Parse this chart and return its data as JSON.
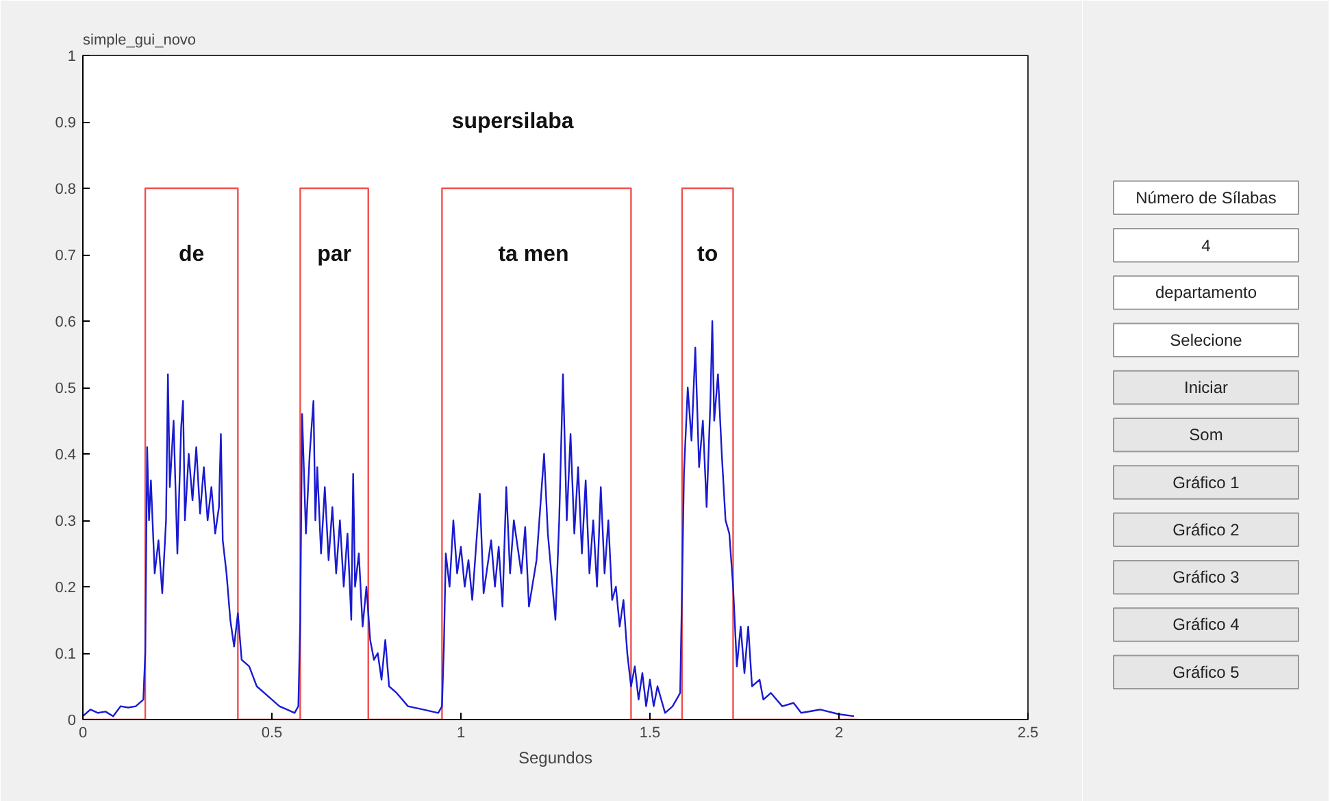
{
  "chart_data": [
    {
      "type": "line",
      "title": "simple_gui_novo",
      "xlabel": "Segundos",
      "xlim": [
        0,
        2.5
      ],
      "ylim": [
        0,
        1
      ],
      "xticks": [
        0,
        0.5,
        1,
        1.5,
        2,
        2.5
      ],
      "yticks": [
        0,
        0.1,
        0.2,
        0.3,
        0.4,
        0.5,
        0.6,
        0.7,
        0.8,
        0.9,
        1
      ],
      "grid": false,
      "series": [
        {
          "color": "#f05050",
          "x": [
            0,
            0.165,
            0.165,
            0.41,
            0.41,
            0.575,
            0.575,
            0.755,
            0.755,
            0.95,
            0.95,
            1.45,
            1.45,
            1.585,
            1.585,
            1.72,
            1.72,
            2.05
          ],
          "values": [
            0,
            0,
            0.8,
            0.8,
            0,
            0,
            0.8,
            0.8,
            0,
            0,
            0.8,
            0.8,
            0,
            0,
            0.8,
            0.8,
            0,
            0
          ]
        },
        {
          "color": "#1a1ad0",
          "x": [
            0,
            0.02,
            0.04,
            0.06,
            0.08,
            0.1,
            0.12,
            0.14,
            0.16,
            0.165,
            0.17,
            0.175,
            0.18,
            0.19,
            0.2,
            0.21,
            0.22,
            0.225,
            0.23,
            0.24,
            0.25,
            0.26,
            0.265,
            0.27,
            0.28,
            0.29,
            0.3,
            0.31,
            0.32,
            0.33,
            0.34,
            0.35,
            0.36,
            0.365,
            0.37,
            0.38,
            0.39,
            0.4,
            0.41,
            0.42,
            0.44,
            0.46,
            0.48,
            0.5,
            0.52,
            0.54,
            0.56,
            0.57,
            0.575,
            0.58,
            0.59,
            0.6,
            0.61,
            0.615,
            0.62,
            0.63,
            0.64,
            0.65,
            0.66,
            0.67,
            0.68,
            0.69,
            0.7,
            0.71,
            0.715,
            0.72,
            0.73,
            0.74,
            0.75,
            0.76,
            0.77,
            0.78,
            0.79,
            0.8,
            0.81,
            0.83,
            0.86,
            0.9,
            0.94,
            0.95,
            0.955,
            0.96,
            0.97,
            0.98,
            0.99,
            1.0,
            1.01,
            1.02,
            1.03,
            1.05,
            1.06,
            1.08,
            1.09,
            1.1,
            1.11,
            1.12,
            1.13,
            1.14,
            1.16,
            1.17,
            1.18,
            1.2,
            1.22,
            1.23,
            1.25,
            1.26,
            1.27,
            1.28,
            1.29,
            1.3,
            1.31,
            1.32,
            1.33,
            1.34,
            1.35,
            1.36,
            1.37,
            1.38,
            1.39,
            1.4,
            1.41,
            1.42,
            1.43,
            1.44,
            1.45,
            1.46,
            1.47,
            1.48,
            1.49,
            1.5,
            1.51,
            1.52,
            1.54,
            1.56,
            1.58,
            1.585,
            1.59,
            1.6,
            1.61,
            1.62,
            1.63,
            1.64,
            1.65,
            1.66,
            1.665,
            1.67,
            1.68,
            1.69,
            1.7,
            1.71,
            1.72,
            1.73,
            1.74,
            1.75,
            1.76,
            1.77,
            1.79,
            1.8,
            1.82,
            1.85,
            1.88,
            1.9,
            1.95,
            2.0,
            2.04
          ],
          "values": [
            0.005,
            0.015,
            0.01,
            0.012,
            0.005,
            0.02,
            0.018,
            0.02,
            0.03,
            0.1,
            0.41,
            0.3,
            0.36,
            0.22,
            0.27,
            0.19,
            0.3,
            0.52,
            0.35,
            0.45,
            0.25,
            0.44,
            0.48,
            0.3,
            0.4,
            0.33,
            0.41,
            0.31,
            0.38,
            0.3,
            0.35,
            0.28,
            0.32,
            0.43,
            0.27,
            0.22,
            0.15,
            0.11,
            0.16,
            0.09,
            0.08,
            0.05,
            0.04,
            0.03,
            0.02,
            0.015,
            0.01,
            0.02,
            0.15,
            0.46,
            0.28,
            0.4,
            0.48,
            0.3,
            0.38,
            0.25,
            0.35,
            0.24,
            0.32,
            0.22,
            0.3,
            0.2,
            0.28,
            0.15,
            0.37,
            0.2,
            0.25,
            0.14,
            0.2,
            0.12,
            0.09,
            0.1,
            0.06,
            0.12,
            0.05,
            0.04,
            0.02,
            0.015,
            0.01,
            0.02,
            0.11,
            0.25,
            0.2,
            0.3,
            0.22,
            0.26,
            0.2,
            0.24,
            0.18,
            0.34,
            0.19,
            0.27,
            0.2,
            0.26,
            0.17,
            0.35,
            0.22,
            0.3,
            0.22,
            0.29,
            0.17,
            0.24,
            0.4,
            0.28,
            0.15,
            0.3,
            0.52,
            0.3,
            0.43,
            0.28,
            0.38,
            0.25,
            0.36,
            0.22,
            0.3,
            0.2,
            0.35,
            0.22,
            0.3,
            0.18,
            0.2,
            0.14,
            0.18,
            0.1,
            0.05,
            0.08,
            0.03,
            0.07,
            0.02,
            0.06,
            0.02,
            0.05,
            0.01,
            0.02,
            0.04,
            0.2,
            0.37,
            0.5,
            0.42,
            0.56,
            0.38,
            0.45,
            0.32,
            0.48,
            0.6,
            0.45,
            0.52,
            0.4,
            0.3,
            0.28,
            0.2,
            0.08,
            0.14,
            0.07,
            0.14,
            0.05,
            0.06,
            0.03,
            0.04,
            0.02,
            0.025,
            0.01,
            0.015,
            0.008,
            0.005
          ]
        }
      ],
      "annotations": [
        "supersilaba",
        "de",
        "par",
        "ta  men",
        "to"
      ]
    },
    {
      "type": "other",
      "annotations": [
        "Número de Sílabas",
        "4",
        "departamento",
        "Selecione",
        "Iniciar",
        "Som",
        "Gráfico 1",
        "Gráfico 2",
        "Gráfico 3",
        "Gráfico 4",
        "Gráfico 5"
      ]
    }
  ]
}
